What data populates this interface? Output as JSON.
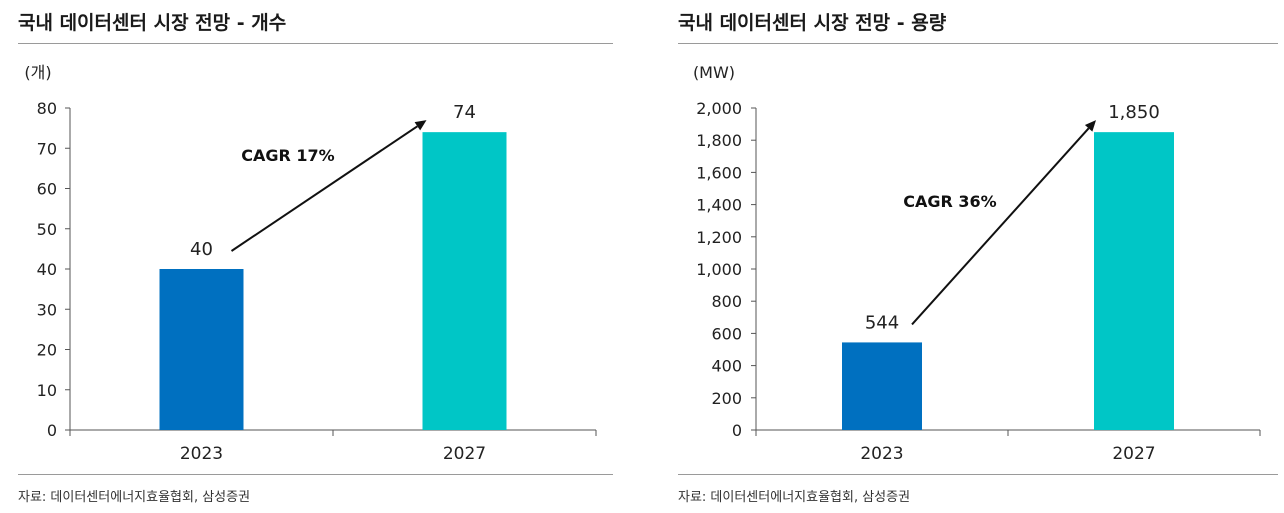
{
  "charts": [
    {
      "title": "국내 데이터센터 시장 전망 - 개수",
      "source": "자료: 데이터센터에너지효율협회, 삼성증권",
      "chart_data": {
        "type": "bar",
        "categories": [
          "2023",
          "2027"
        ],
        "values": [
          40,
          74
        ],
        "unit_label": "(개)",
        "ylim": [
          0,
          80
        ],
        "yticks": [
          0,
          10,
          20,
          30,
          40,
          50,
          60,
          70,
          80
        ],
        "ytick_labels": [
          "0",
          "10",
          "20",
          "30",
          "40",
          "50",
          "60",
          "70",
          "80"
        ],
        "data_labels": [
          "40",
          "74"
        ],
        "bar_colors": [
          "#0070c0",
          "#00c6c6"
        ],
        "annotation": "CAGR 17%",
        "grid": false
      }
    },
    {
      "title": "국내 데이터센터 시장 전망 - 용량",
      "source": "자료: 데이터센터에너지효율협회, 삼성증권",
      "chart_data": {
        "type": "bar",
        "categories": [
          "2023",
          "2027"
        ],
        "values": [
          544,
          1850
        ],
        "unit_label": "(MW)",
        "ylim": [
          0,
          2000
        ],
        "yticks": [
          0,
          200,
          400,
          600,
          800,
          1000,
          1200,
          1400,
          1600,
          1800,
          2000
        ],
        "ytick_labels": [
          "0",
          "200",
          "400",
          "600",
          "800",
          "1,000",
          "1,200",
          "1,400",
          "1,600",
          "1,800",
          "2,000"
        ],
        "data_labels": [
          "544",
          "1,850"
        ],
        "bar_colors": [
          "#0070c0",
          "#00c6c6"
        ],
        "annotation": "CAGR 36%",
        "grid": false
      }
    }
  ]
}
